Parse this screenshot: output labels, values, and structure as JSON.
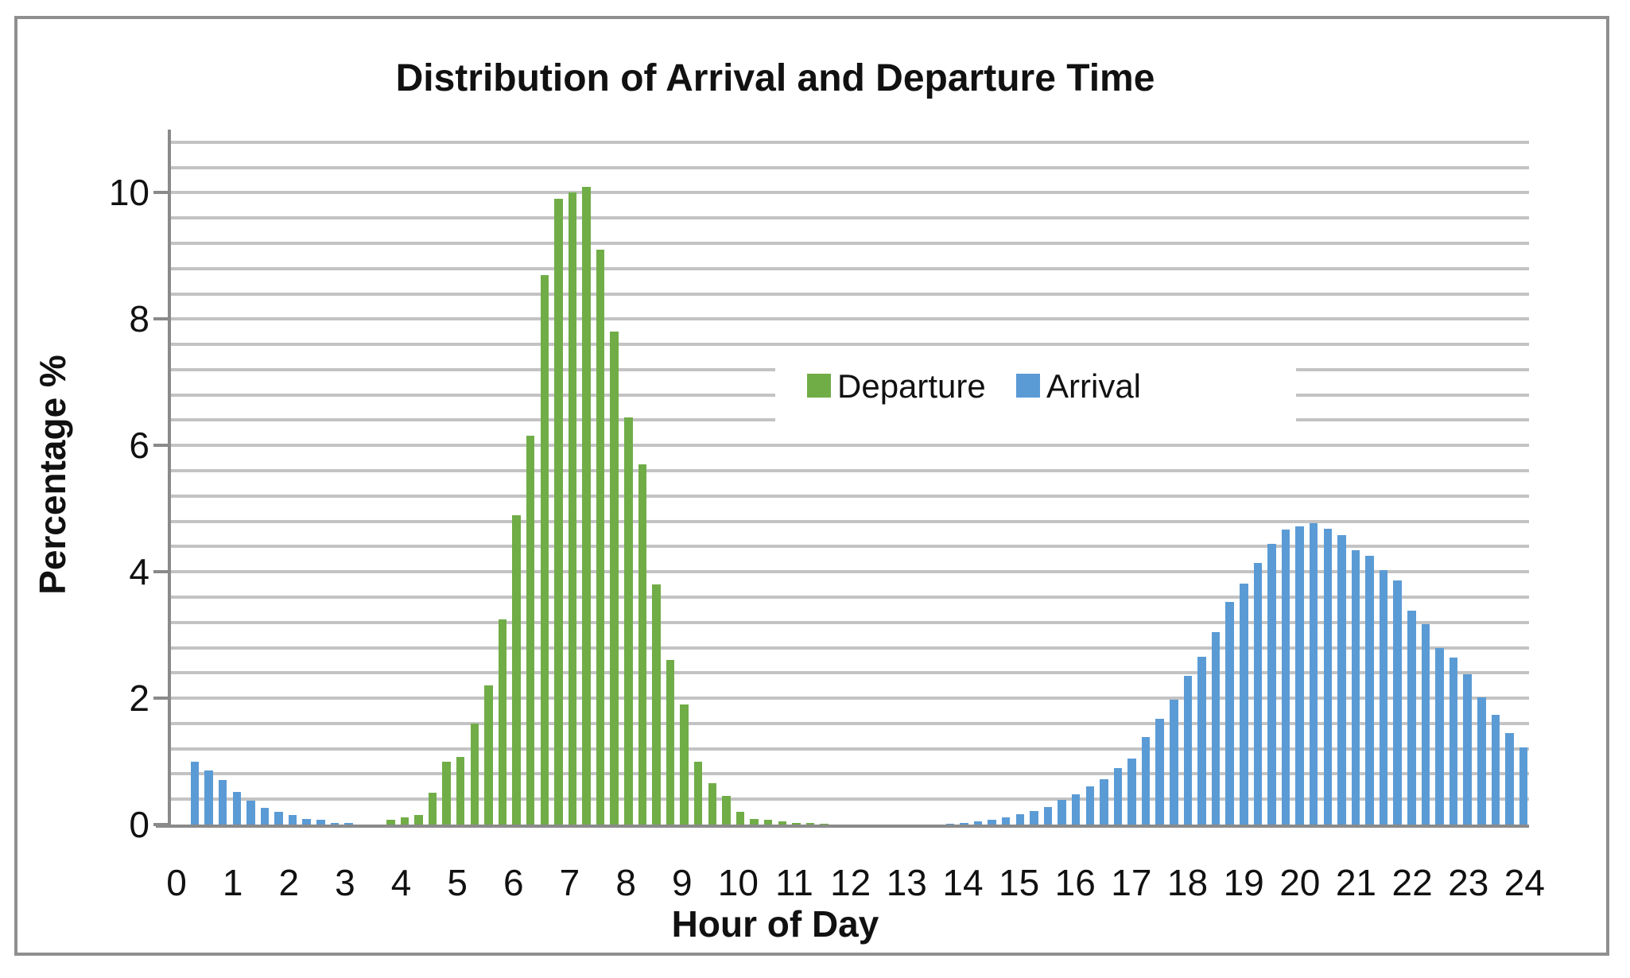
{
  "title": "Distribution of Arrival and Departure Time",
  "x_axis": {
    "title": "Hour of Day",
    "tick_labels": [
      "0",
      "1",
      "2",
      "3",
      "4",
      "5",
      "6",
      "7",
      "8",
      "9",
      "10",
      "11",
      "12",
      "13",
      "14",
      "15",
      "16",
      "17",
      "18",
      "19",
      "20",
      "21",
      "22",
      "23",
      "24"
    ]
  },
  "y_axis": {
    "title": "Percentage %",
    "tick_labels": [
      "0",
      "2",
      "4",
      "6",
      "8",
      "10"
    ],
    "tick_values": [
      0,
      2,
      4,
      6,
      8,
      10
    ]
  },
  "legend": {
    "items": [
      {
        "label": "Departure",
        "color": "#70ad47"
      },
      {
        "label": "Arrival",
        "color": "#5b9bd5"
      }
    ]
  },
  "colors": {
    "departure": "#70ad47",
    "arrival": "#5b9bd5",
    "gridline": "#c3c3c3",
    "axis": "#8a8a8a",
    "border": "#8f8f8f",
    "text": "#111111"
  },
  "chart_data": {
    "type": "bar",
    "title": "Distribution of Arrival and Departure Time",
    "xlabel": "Hour of Day",
    "ylabel": "Percentage %",
    "x_hours": {
      "start": 0,
      "end": 24,
      "step_minutes": 15
    },
    "ylim": [
      0,
      11
    ],
    "gridline_step": 0.4,
    "y_major_step": 2,
    "grid": "on",
    "legend_position": "center-right-inside",
    "series": [
      {
        "name": "Departure",
        "color": "#70ad47",
        "values": [
          0,
          0,
          0,
          0,
          0,
          0,
          0,
          0,
          0,
          0,
          0,
          0,
          0,
          0,
          0,
          0.07,
          0.11,
          0.15,
          0.5,
          1.0,
          1.07,
          1.6,
          2.2,
          3.25,
          4.9,
          6.15,
          8.7,
          9.9,
          10.0,
          10.1,
          9.1,
          7.8,
          6.45,
          5.7,
          3.8,
          2.6,
          1.9,
          1.0,
          0.65,
          0.45,
          0.2,
          0.09,
          0.07,
          0.05,
          0.03,
          0.02,
          0.01,
          0,
          0,
          0,
          0,
          0,
          0,
          0,
          0,
          0,
          0,
          0,
          0,
          0,
          0,
          0,
          0,
          0,
          0,
          0,
          0,
          0,
          0,
          0,
          0,
          0,
          0,
          0,
          0,
          0,
          0,
          0,
          0,
          0,
          0,
          0,
          0,
          0,
          0,
          0,
          0,
          0,
          0,
          0,
          0,
          0,
          0,
          0,
          0,
          0,
          0
        ]
      },
      {
        "name": "Arrival",
        "color": "#5b9bd5",
        "values": [
          0,
          1.0,
          0.85,
          0.7,
          0.52,
          0.38,
          0.27,
          0.2,
          0.15,
          0.09,
          0.07,
          0.03,
          0.02,
          0,
          0,
          0,
          0,
          0,
          0,
          0,
          0,
          0,
          0,
          0,
          0,
          0,
          0,
          0,
          0,
          0,
          0,
          0,
          0,
          0,
          0,
          0,
          0,
          0,
          0,
          0,
          0,
          0,
          0,
          0,
          0,
          0,
          0,
          0,
          0,
          0,
          0,
          0,
          0,
          0,
          0,
          0.01,
          0.03,
          0.05,
          0.08,
          0.11,
          0.16,
          0.22,
          0.28,
          0.39,
          0.48,
          0.61,
          0.72,
          0.9,
          1.05,
          1.38,
          1.68,
          1.98,
          2.35,
          2.66,
          3.05,
          3.53,
          3.81,
          4.14,
          4.44,
          4.67,
          4.72,
          4.77,
          4.68,
          4.58,
          4.34,
          4.25,
          4.03,
          3.86,
          3.39,
          3.17,
          2.8,
          2.64,
          2.38,
          2.02,
          1.74,
          1.45,
          1.22
        ]
      }
    ]
  }
}
